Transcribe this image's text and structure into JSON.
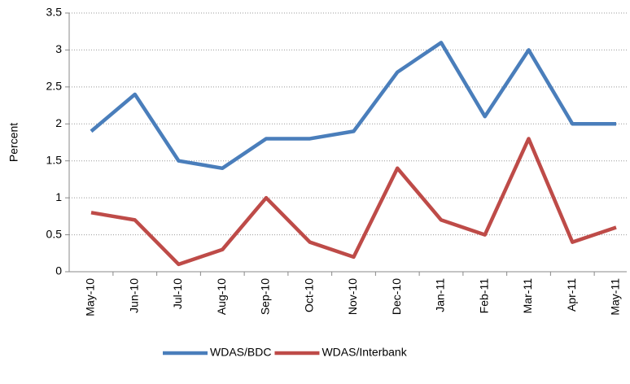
{
  "chart_data": {
    "type": "line",
    "y_label": "Percent",
    "categories": [
      "May-10",
      "Jun-10",
      "Jul-10",
      "Aug-10",
      "Sep-10",
      "Oct-10",
      "Nov-10",
      "Dec-10",
      "Jan-11",
      "Feb-11",
      "Mar-11",
      "Apr-11",
      "May-11"
    ],
    "series": [
      {
        "name": "WDAS/BDC",
        "color": "#4a7ebb",
        "values": [
          1.9,
          2.4,
          1.5,
          1.4,
          1.8,
          1.8,
          1.9,
          2.7,
          3.1,
          2.1,
          3.0,
          2.0,
          2.0
        ]
      },
      {
        "name": "WDAS/Interbank",
        "color": "#be4b48",
        "values": [
          0.8,
          0.7,
          0.1,
          0.3,
          1.0,
          0.4,
          0.2,
          1.4,
          0.7,
          0.5,
          1.8,
          0.4,
          0.6
        ]
      }
    ],
    "ylim": [
      0,
      3.5
    ],
    "yticks": [
      0,
      0.5,
      1,
      1.5,
      2,
      2.5,
      3,
      3.5
    ],
    "grid": true,
    "legend": "bottom"
  }
}
